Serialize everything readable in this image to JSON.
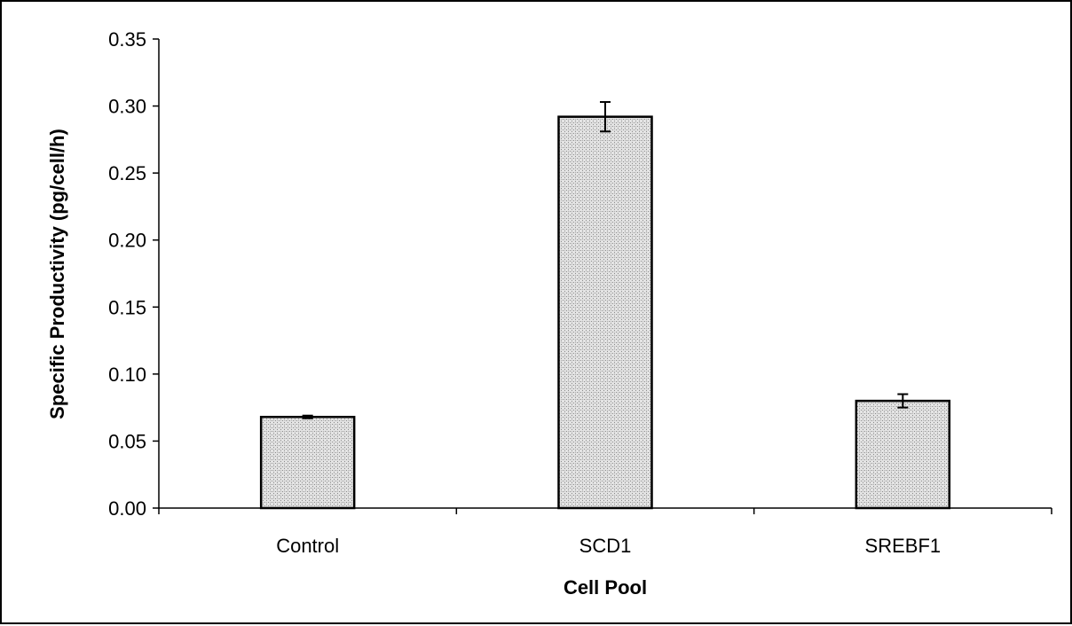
{
  "chart_data": {
    "type": "bar",
    "title": "",
    "xlabel": "Cell Pool",
    "ylabel": "Specific Productivity (pg/cell/h)",
    "categories": [
      "Control",
      "SCD1",
      "SREBF1"
    ],
    "values": [
      0.068,
      0.292,
      0.08
    ],
    "errors": [
      0.001,
      0.011,
      0.005
    ],
    "ylim": [
      0,
      0.35
    ],
    "yticks": [
      "0.00",
      "0.05",
      "0.10",
      "0.15",
      "0.20",
      "0.25",
      "0.30",
      "0.35"
    ],
    "grid": false,
    "legend": "none",
    "colors": {
      "bar_fill": "#c8c8c8",
      "bar_stroke": "#000000",
      "axis": "#000000"
    }
  }
}
